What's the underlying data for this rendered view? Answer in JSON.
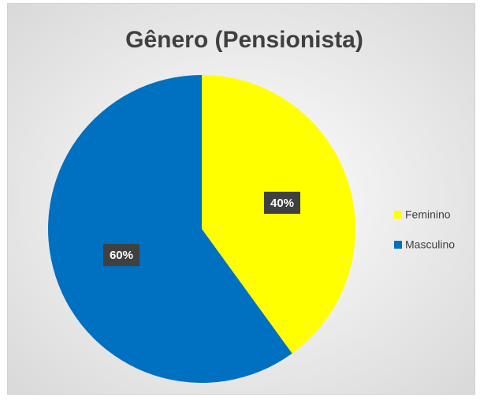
{
  "chart_data": {
    "type": "pie",
    "title": "Gênero (Pensionista)",
    "categories": [
      "Feminino",
      "Masculino"
    ],
    "values": [
      40,
      60
    ],
    "value_labels": [
      "40%",
      "60%"
    ],
    "colors": [
      "#ffff00",
      "#0070c0"
    ],
    "legend": "right"
  }
}
